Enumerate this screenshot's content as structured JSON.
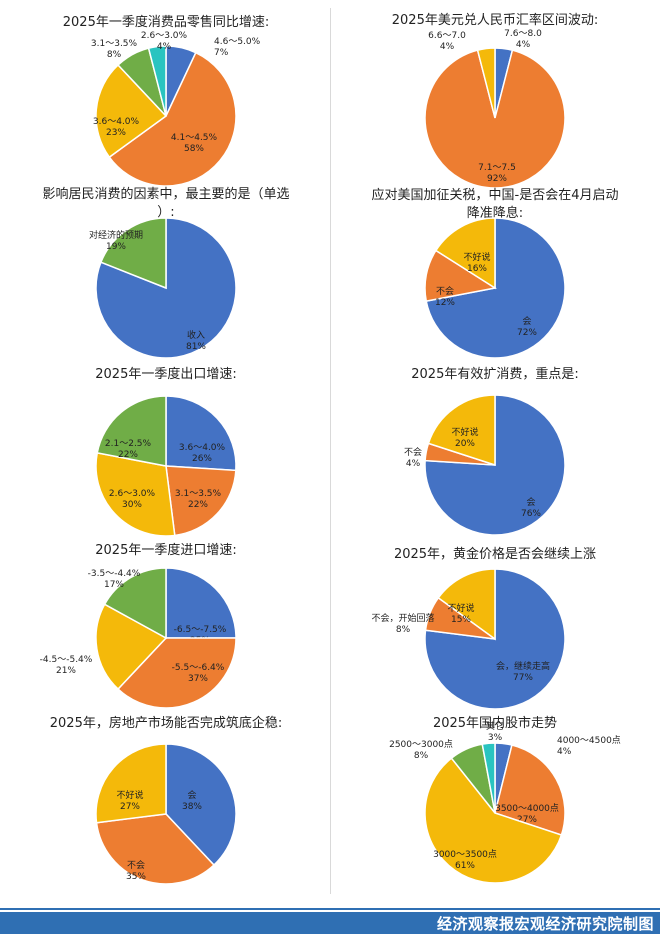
{
  "colors": {
    "blue": "#4472c4",
    "orange": "#ed7d31",
    "yellow": "#f4b90a",
    "green": "#70ad47",
    "teal": "#29c4c0"
  },
  "footer": {
    "credit": "经济观察报宏观经济研究院制图"
  },
  "chart_data": [
    {
      "type": "pie",
      "title": "2025年一季度消费品零售同比增速:",
      "slices": [
        {
          "label": "4.6～5.0%",
          "value": 7,
          "pct": "7%",
          "color": "blue"
        },
        {
          "label": "4.1～4.5%",
          "value": 58,
          "pct": "58%",
          "color": "orange"
        },
        {
          "label": "3.6～4.0%",
          "value": 23,
          "pct": "23%",
          "color": "yellow"
        },
        {
          "label": "3.1～3.5%",
          "value": 8,
          "pct": "8%",
          "color": "green"
        },
        {
          "label": "2.6～3.0%",
          "value": 4,
          "pct": "4%",
          "color": "teal"
        }
      ]
    },
    {
      "type": "pie",
      "title": "2025年美元兑人民币汇率区间波动:",
      "slices": [
        {
          "label": "7.6～8.0",
          "value": 4,
          "pct": "4%",
          "color": "blue"
        },
        {
          "label": "7.1～7.5",
          "value": 92,
          "pct": "92%",
          "color": "orange"
        },
        {
          "label": "6.6～7.0",
          "value": 4,
          "pct": "4%",
          "color": "yellow"
        }
      ]
    },
    {
      "type": "pie",
      "title": "影响居民消费的因素中，最主要的是（单选）:",
      "slices": [
        {
          "label": "收入",
          "value": 81,
          "pct": "81%",
          "color": "blue"
        },
        {
          "label": "对经济的预期",
          "value": 19,
          "pct": "19%",
          "color": "green"
        }
      ]
    },
    {
      "type": "pie",
      "title": "应对美国加征关税，中国-是否会在4月启动降准降息:",
      "slices": [
        {
          "label": "会",
          "value": 72,
          "pct": "72%",
          "color": "blue"
        },
        {
          "label": "不会",
          "value": 12,
          "pct": "12%",
          "color": "orange"
        },
        {
          "label": "不好说",
          "value": 16,
          "pct": "16%",
          "color": "yellow"
        }
      ]
    },
    {
      "type": "pie",
      "title": "2025年一季度出口增速:",
      "slices": [
        {
          "label": "3.6～4.0%",
          "value": 26,
          "pct": "26%",
          "color": "blue"
        },
        {
          "label": "3.1～3.5%",
          "value": 22,
          "pct": "22%",
          "color": "orange"
        },
        {
          "label": "2.6～3.0%",
          "value": 30,
          "pct": "30%",
          "color": "yellow"
        },
        {
          "label": "2.1～2.5%",
          "value": 22,
          "pct": "22%",
          "color": "green"
        }
      ]
    },
    {
      "type": "pie",
      "title": "2025年有效扩消费，重点是:",
      "slices": [
        {
          "label": "会",
          "value": 76,
          "pct": "76%",
          "color": "blue"
        },
        {
          "label": "不会",
          "value": 4,
          "pct": "4%",
          "color": "orange"
        },
        {
          "label": "不好说",
          "value": 20,
          "pct": "20%",
          "color": "yellow"
        }
      ]
    },
    {
      "type": "pie",
      "title": "2025年一季度进口增速:",
      "slices": [
        {
          "label": "-6.5～-7.5%",
          "value": 25,
          "pct": "25%",
          "color": "blue"
        },
        {
          "label": "-5.5～-6.4%",
          "value": 37,
          "pct": "37%",
          "color": "orange"
        },
        {
          "label": "-4.5～-5.4%",
          "value": 21,
          "pct": "21%",
          "color": "yellow"
        },
        {
          "label": "-3.5～-4.4%",
          "value": 17,
          "pct": "17%",
          "color": "green"
        }
      ]
    },
    {
      "type": "pie",
      "title": "2025年，黄金价格是否会继续上涨",
      "slices": [
        {
          "label": "会，继续走高",
          "value": 77,
          "pct": "77%",
          "color": "blue"
        },
        {
          "label": "不会，开始回落",
          "value": 8,
          "pct": "8%",
          "color": "orange"
        },
        {
          "label": "不好说",
          "value": 15,
          "pct": "15%",
          "color": "yellow"
        }
      ]
    },
    {
      "type": "pie",
      "title": "2025年，房地产市场能否完成筑底企稳:",
      "slices": [
        {
          "label": "会",
          "value": 38,
          "pct": "38%",
          "color": "blue"
        },
        {
          "label": "不会",
          "value": 35,
          "pct": "35%",
          "color": "orange"
        },
        {
          "label": "不好说",
          "value": 27,
          "pct": "27%",
          "color": "yellow"
        }
      ]
    },
    {
      "type": "pie",
      "title": "2025年国内股市走势",
      "slices": [
        {
          "label": "4000～4500点",
          "value": 4,
          "pct": "4%",
          "color": "blue"
        },
        {
          "label": "3500～4000点",
          "value": 27,
          "pct": "27%",
          "color": "orange"
        },
        {
          "label": "3000～3500点",
          "value": 61,
          "pct": "61%",
          "color": "yellow"
        },
        {
          "label": "2500～3000点",
          "value": 8,
          "pct": "8%",
          "color": "green"
        },
        {
          "label": "其它",
          "value": 3,
          "pct": "3%",
          "color": "teal"
        }
      ]
    }
  ]
}
